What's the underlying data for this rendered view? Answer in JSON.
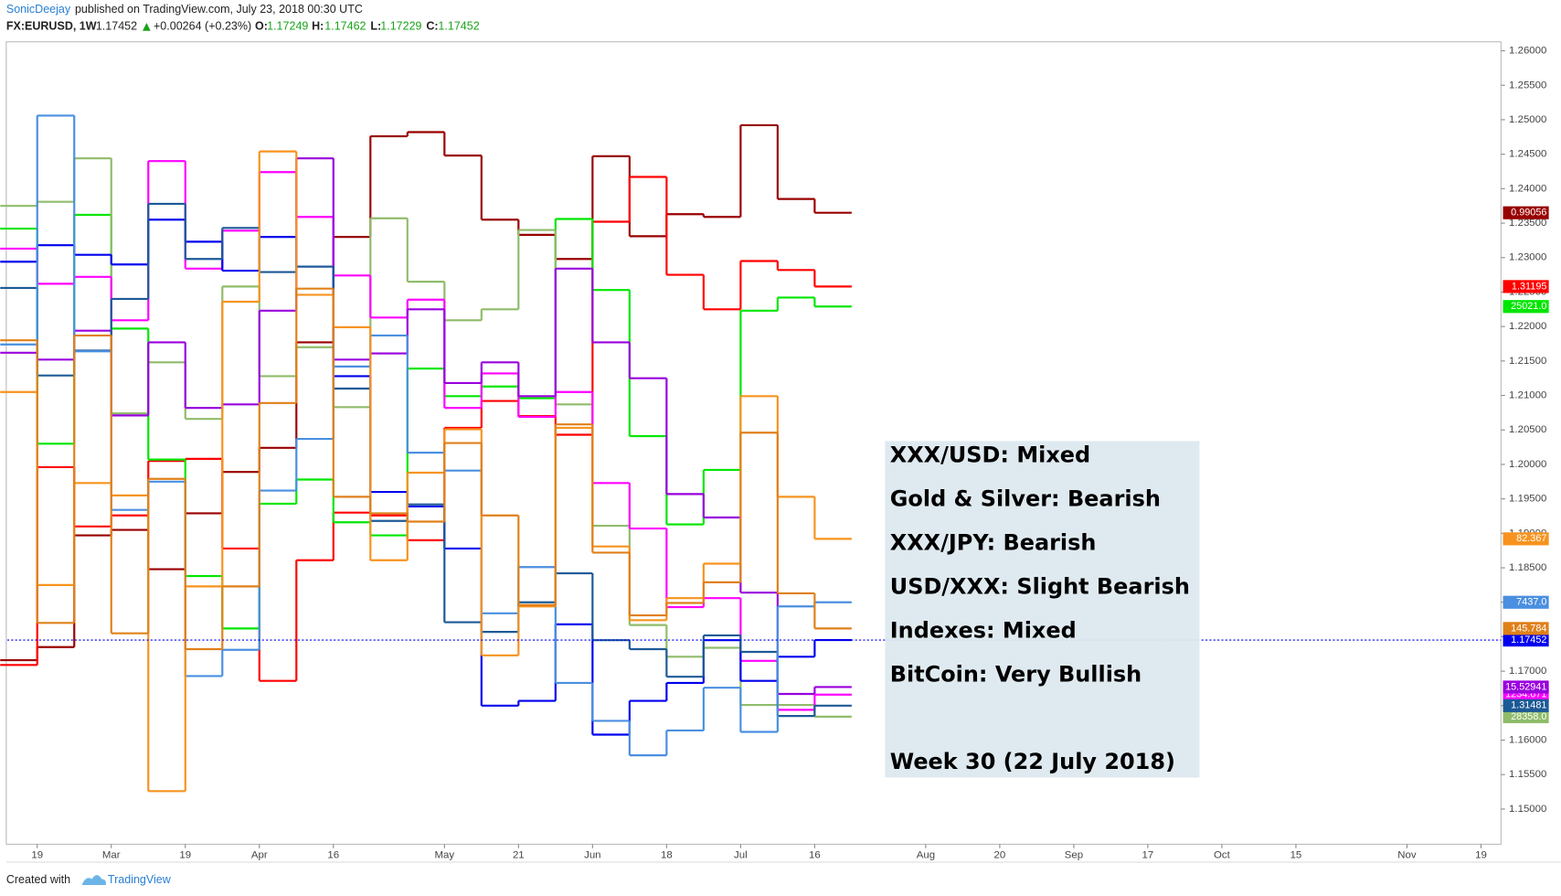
{
  "header": {
    "author": "SonicDeejay",
    "published": "published on TradingView.com, July 23, 2018 00:30 UTC",
    "symbol": "FX:EURUSD, 1W",
    "last": "1.17452",
    "change": "+0.00264 (+0.23%)",
    "ohlc": [
      {
        "key": "O:",
        "value": "1.17249"
      },
      {
        "key": "H:",
        "value": "1.17462"
      },
      {
        "key": "L:",
        "value": "1.17229"
      },
      {
        "key": "C:",
        "value": "1.17452"
      }
    ]
  },
  "footer": {
    "created_with": "Created with",
    "brand": "TradingView"
  },
  "chart_data": {
    "type": "line",
    "step": true,
    "annotations": [
      "XXX/USD: Mixed",
      "Gold & Silver: Bearish",
      "XXX/JPY: Bearish",
      "USD/XXX: Slight Bearish",
      "Indexes: Mixed",
      "BitCoin: Very Bullish",
      "Week 30 (22 July 2018)"
    ],
    "x": [
      0,
      1,
      2,
      3,
      4,
      5,
      6,
      7,
      8,
      9,
      10,
      11,
      12,
      13,
      14,
      15,
      16,
      17,
      18,
      19,
      20,
      21,
      22
    ],
    "xlim": [
      0.19,
      40.54
    ],
    "xticks": [
      {
        "value": 1,
        "label": "19"
      },
      {
        "value": 3,
        "label": "Mar"
      },
      {
        "value": 5,
        "label": "19"
      },
      {
        "value": 7,
        "label": "Apr"
      },
      {
        "value": 9,
        "label": "16"
      },
      {
        "value": 12,
        "label": "May"
      },
      {
        "value": 14,
        "label": "21"
      },
      {
        "value": 16,
        "label": "Jun"
      },
      {
        "value": 18,
        "label": "18"
      },
      {
        "value": 20,
        "label": "Jul"
      },
      {
        "value": 22,
        "label": "16"
      },
      {
        "value": 25,
        "label": "Aug"
      },
      {
        "value": 27,
        "label": "20"
      },
      {
        "value": 29,
        "label": "Sep"
      },
      {
        "value": 31,
        "label": "17"
      },
      {
        "value": 33,
        "label": "Oct"
      },
      {
        "value": 35,
        "label": "15"
      },
      {
        "value": 38,
        "label": "Nov"
      },
      {
        "value": 40,
        "label": "19"
      }
    ],
    "ylim": [
      1.1449,
      1.2613
    ],
    "yticks": [
      {
        "value": 1.15,
        "label": "1.15000"
      },
      {
        "value": 1.155,
        "label": "1.15500"
      },
      {
        "value": 1.16,
        "label": "1.16000"
      },
      {
        "value": 1.165,
        "label": "1.16500"
      },
      {
        "value": 1.17,
        "label": "1.17000"
      },
      {
        "value": 1.175,
        "label": "1.17500"
      },
      {
        "value": 1.18,
        "label": "1.18000"
      },
      {
        "value": 1.185,
        "label": "1.18500"
      },
      {
        "value": 1.19,
        "label": "1.19000"
      },
      {
        "value": 1.195,
        "label": "1.19500"
      },
      {
        "value": 1.2,
        "label": "1.20000"
      },
      {
        "value": 1.205,
        "label": "1.20500"
      },
      {
        "value": 1.21,
        "label": "1.21000"
      },
      {
        "value": 1.215,
        "label": "1.21500"
      },
      {
        "value": 1.22,
        "label": "1.22000"
      },
      {
        "value": 1.225,
        "label": "1.22500"
      },
      {
        "value": 1.23,
        "label": "1.23000"
      },
      {
        "value": 1.235,
        "label": "1.23500"
      },
      {
        "value": 1.24,
        "label": "1.24000"
      },
      {
        "value": 1.245,
        "label": "1.24500"
      },
      {
        "value": 1.25,
        "label": "1.25000"
      },
      {
        "value": 1.255,
        "label": "1.25500"
      },
      {
        "value": 1.26,
        "label": "1.26000"
      }
    ],
    "price_line_series": 6,
    "series": [
      {
        "color": "#990000",
        "last_label": "0.99056",
        "values": [
          1.1716,
          1.1735,
          1.1897,
          1.1905,
          1.1848,
          1.1929,
          1.1989,
          1.2024,
          1.2177,
          1.233,
          1.2476,
          1.2482,
          1.2448,
          1.2355,
          1.2333,
          1.2298,
          1.2447,
          1.2331,
          1.2363,
          1.2359,
          1.2492,
          1.2385,
          1.2365
        ]
      },
      {
        "color": "#ff0000",
        "last_label": "1.31195",
        "values": [
          1.1709,
          1.1996,
          1.191,
          1.1926,
          1.2005,
          1.2008,
          1.1878,
          1.1686,
          1.1861,
          1.193,
          1.1926,
          1.189,
          1.2053,
          1.2092,
          1.207,
          1.2043,
          1.2352,
          1.2417,
          1.2275,
          1.2225,
          1.2295,
          1.2282,
          1.2258
        ]
      },
      {
        "color": "#00e600",
        "last_label": "25021.0",
        "values": [
          1.2342,
          1.203,
          1.2362,
          1.2197,
          1.2007,
          1.1838,
          1.1762,
          1.1943,
          1.1978,
          1.1916,
          1.1897,
          1.2139,
          1.2099,
          1.2113,
          1.2096,
          1.2356,
          1.2253,
          1.2041,
          1.1913,
          1.1992,
          1.2223,
          1.2242,
          1.2229
        ]
      },
      {
        "color": "#8fbc6a",
        "last_label": "28358.0",
        "values": [
          1.2375,
          1.2381,
          1.2444,
          1.2074,
          1.2148,
          1.2066,
          1.2258,
          1.2128,
          1.217,
          1.2083,
          1.2357,
          1.2265,
          1.2209,
          1.2225,
          1.234,
          1.2087,
          1.1911,
          1.1767,
          1.1721,
          1.1734,
          1.1651,
          1.1651,
          1.1634
        ]
      },
      {
        "color": "#ff00ff",
        "last_label": "1234.671",
        "values": [
          1.2313,
          1.2262,
          1.2272,
          1.2209,
          1.244,
          1.2284,
          1.2339,
          1.2424,
          1.2359,
          1.2274,
          1.2213,
          1.2239,
          1.2082,
          1.2132,
          1.2069,
          1.2105,
          1.1973,
          1.1907,
          1.1793,
          1.1806,
          1.1715,
          1.1644,
          1.1666
        ]
      },
      {
        "color": "#9900dd",
        "last_label": "15.52941",
        "values": [
          1.2162,
          1.2152,
          1.2194,
          1.2071,
          1.2177,
          1.2082,
          1.2087,
          1.2223,
          1.2444,
          1.2152,
          1.2161,
          1.2225,
          1.2118,
          1.2148,
          1.2099,
          1.2284,
          1.2177,
          1.2125,
          1.1957,
          1.1923,
          1.1814,
          1.1667,
          1.1677
        ]
      },
      {
        "color": "#0000ee",
        "last_label": "1.17452",
        "values": [
          1.2294,
          1.2318,
          1.2304,
          1.229,
          1.2355,
          1.2323,
          1.2281,
          1.233,
          1.2287,
          1.2128,
          1.196,
          1.1939,
          1.1878,
          1.165,
          1.1657,
          1.1768,
          1.1608,
          1.1657,
          1.1683,
          1.1745,
          1.1686,
          1.1721,
          1.17452
        ]
      },
      {
        "color": "#1c5a96",
        "last_label": "1.31481",
        "values": [
          1.2256,
          1.2129,
          1.2165,
          1.224,
          1.2378,
          1.2298,
          1.2343,
          1.2279,
          1.2287,
          1.211,
          1.1918,
          1.1942,
          1.1771,
          1.1757,
          1.18,
          1.1842,
          1.1745,
          1.1732,
          1.1692,
          1.1752,
          1.1728,
          1.1635,
          1.165
        ]
      },
      {
        "color": "#4a8fe0",
        "last_label": "7437.0",
        "values": [
          1.2174,
          1.2506,
          1.2164,
          1.1934,
          1.1975,
          1.1693,
          1.1731,
          1.1962,
          1.2037,
          1.2142,
          1.2187,
          1.2017,
          1.1991,
          1.1784,
          1.1851,
          1.1683,
          1.1628,
          1.1578,
          1.1614,
          1.1676,
          1.1612,
          1.1794,
          1.18
        ]
      },
      {
        "color": "#f7931e",
        "last_label": "82.367",
        "values": [
          1.2105,
          1.1825,
          1.1973,
          1.1955,
          1.1526,
          1.1823,
          1.2236,
          1.2454,
          1.2246,
          1.2199,
          1.1861,
          1.1988,
          1.2051,
          1.1723,
          1.1794,
          1.2053,
          1.1881,
          1.1774,
          1.1806,
          1.1856,
          1.2099,
          1.1953,
          1.1892
        ]
      },
      {
        "color": "#e0801a",
        "last_label": "145.784",
        "values": [
          1.218,
          1.177,
          1.2187,
          1.1755,
          1.1979,
          1.1732,
          1.1823,
          1.2089,
          1.2255,
          1.1953,
          1.1929,
          1.1917,
          1.2031,
          1.1926,
          1.1796,
          1.2058,
          1.1872,
          1.1781,
          1.1799,
          1.1829,
          1.2046,
          1.1813,
          1.1762
        ]
      }
    ]
  }
}
